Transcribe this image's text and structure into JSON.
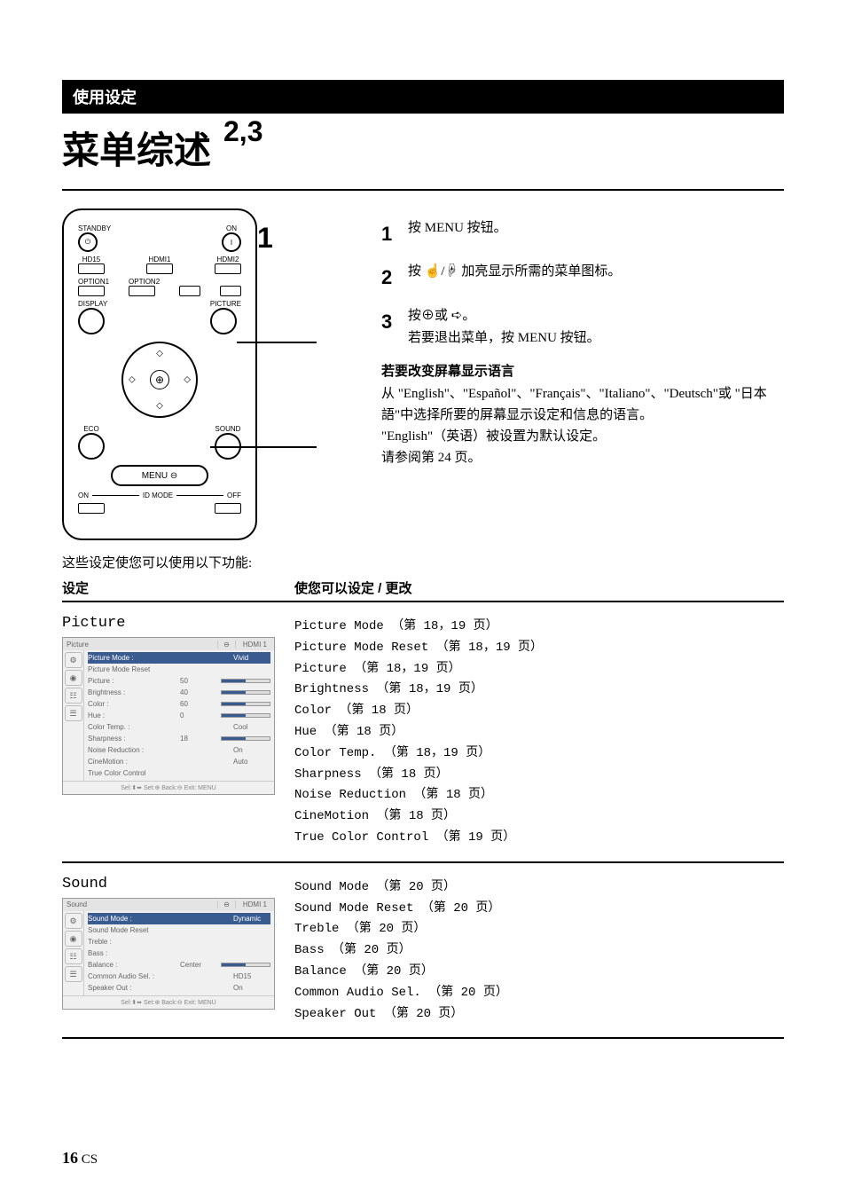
{
  "header": "使用设定",
  "title": "菜单综述",
  "remote": {
    "standby": "STANDBY",
    "on": "ON",
    "hd15": "HD15",
    "hdmi1": "HDMI1",
    "hdmi2": "HDMI2",
    "option1": "OPTION1",
    "option2": "OPTION2",
    "display": "DISPLAY",
    "picture": "PICTURE",
    "eco": "ECO",
    "sound": "SOUND",
    "menu": "MENU",
    "idmode": "ID MODE",
    "on_label": "ON",
    "off_label": "OFF"
  },
  "callouts": {
    "c23": "2,3",
    "c1": "1"
  },
  "steps": [
    {
      "num": "1",
      "text": "按 MENU 按钮。"
    },
    {
      "num": "2",
      "text": "按 ☝/☟ 加亮显示所需的菜单图标。"
    },
    {
      "num": "3",
      "text": "按⊕或 ➪。",
      "sub": "若要退出菜单，按 MENU 按钮。"
    }
  ],
  "langchange": {
    "heading": "若要改变屏幕显示语言",
    "body1": "从 \"English\"、\"Español\"、\"Français\"、\"Italiano\"、\"Deutsch\"或 \"日本語\"中选择所要的屏幕显示设定和信息的语言。",
    "body2": "\"English\"（英语）被设置为默认设定。",
    "body3": "请参阅第 24 页。"
  },
  "settings_note": "这些设定使您可以使用以下功能:",
  "table": {
    "h1": "设定",
    "h2": "使您可以设定 / 更改",
    "rows": [
      {
        "name": "Picture",
        "osd_title": "Picture",
        "osd_source": "HDMI 1",
        "osd_items": [
          {
            "label": "Picture Mode :",
            "val": "Vivid",
            "hl": true
          },
          {
            "label": "Picture Mode Reset",
            "val": ""
          },
          {
            "label": "Picture :",
            "val": "50",
            "slider": true
          },
          {
            "label": "Brightness :",
            "val": "40",
            "slider": true
          },
          {
            "label": "Color :",
            "val": "60",
            "slider": true
          },
          {
            "label": "Hue :",
            "val": "0",
            "slider": true
          },
          {
            "label": "Color Temp. :",
            "val": "Cool"
          },
          {
            "label": "Sharpness :",
            "val": "18",
            "slider": true
          },
          {
            "label": "Noise Reduction :",
            "val": "On"
          },
          {
            "label": "CineMotion :",
            "val": "Auto"
          },
          {
            "label": "True Color Control",
            "val": ""
          }
        ],
        "items": [
          "Picture Mode （第 18，19 页）",
          "Picture Mode Reset （第 18，19 页）",
          "Picture （第 18，19 页）",
          "Brightness （第 18，19 页）",
          "Color （第 18 页）",
          "Hue （第 18 页）",
          "Color Temp. （第 18，19 页）",
          "Sharpness （第 18 页）",
          "Noise Reduction （第 18 页）",
          "CineMotion （第 18 页）",
          "True Color Control （第 19 页）"
        ]
      },
      {
        "name": "Sound",
        "osd_title": "Sound",
        "osd_source": "HDMI 1",
        "osd_items": [
          {
            "label": "Sound Mode :",
            "val": "Dynamic",
            "hl": true
          },
          {
            "label": "Sound Mode Reset",
            "val": ""
          },
          {
            "label": "Treble :",
            "val": ""
          },
          {
            "label": "Bass :",
            "val": ""
          },
          {
            "label": "Balance :",
            "val": "Center",
            "slider": true
          },
          {
            "label": "Common Audio Sel. :",
            "val": "HD15"
          },
          {
            "label": "Speaker Out :",
            "val": "On"
          }
        ],
        "items": [
          "Sound Mode （第 20 页）",
          "Sound Mode Reset （第 20 页）",
          "Treble （第 20 页）",
          "Bass （第 20 页）",
          "Balance （第 20 页）",
          "Common Audio Sel. （第 20 页）",
          "Speaker Out （第 20 页）"
        ]
      }
    ]
  },
  "osd_footer": "Sel:⬍⬌  Set:⊕  Back:⊖  Exit: MENU",
  "page": {
    "num": "16",
    "suffix": " CS"
  }
}
